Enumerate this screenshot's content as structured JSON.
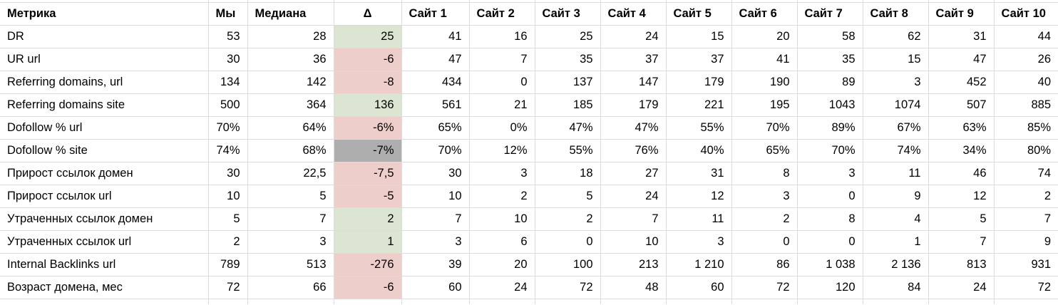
{
  "colors": {
    "delta_positive_bg": "#dbe5d2",
    "delta_negative_bg": "#edcecb",
    "delta_neutral_bg": "#aeaeae",
    "grid_line": "#dcdcdc",
    "text": "#000000",
    "background": "#ffffff"
  },
  "table": {
    "columns": [
      {
        "label": "Метрика",
        "align": "left"
      },
      {
        "label": "Мы",
        "align": "left"
      },
      {
        "label": "Медиана",
        "align": "left"
      },
      {
        "label": "Δ",
        "align": "center"
      },
      {
        "label": "Сайт 1",
        "align": "left"
      },
      {
        "label": "Сайт 2",
        "align": "left"
      },
      {
        "label": "Сайт 3",
        "align": "left"
      },
      {
        "label": "Сайт 4",
        "align": "left"
      },
      {
        "label": "Сайт 5",
        "align": "left"
      },
      {
        "label": "Сайт 6",
        "align": "left"
      },
      {
        "label": "Сайт 7",
        "align": "left"
      },
      {
        "label": "Сайт 8",
        "align": "left"
      },
      {
        "label": "Сайт 9",
        "align": "left"
      },
      {
        "label": "Сайт 10",
        "align": "left"
      }
    ],
    "rows": [
      {
        "metric": "DR",
        "we": "53",
        "median": "28",
        "delta": "25",
        "delta_state": "positive",
        "sites": [
          "41",
          "16",
          "25",
          "24",
          "15",
          "20",
          "58",
          "62",
          "31",
          "44"
        ]
      },
      {
        "metric": "UR url",
        "we": "30",
        "median": "36",
        "delta": "-6",
        "delta_state": "negative",
        "sites": [
          "47",
          "7",
          "35",
          "37",
          "37",
          "41",
          "35",
          "15",
          "47",
          "26"
        ]
      },
      {
        "metric": "Referring domains, url",
        "we": "134",
        "median": "142",
        "delta": "-8",
        "delta_state": "negative",
        "sites": [
          "434",
          "0",
          "137",
          "147",
          "179",
          "190",
          "89",
          "3",
          "452",
          "40"
        ]
      },
      {
        "metric": "Referring domains site",
        "we": "500",
        "median": "364",
        "delta": "136",
        "delta_state": "positive",
        "sites": [
          "561",
          "21",
          "185",
          "179",
          "221",
          "195",
          "1043",
          "1074",
          "507",
          "885"
        ]
      },
      {
        "metric": "Dofollow % url",
        "we": "70%",
        "median": "64%",
        "delta": "-6%",
        "delta_state": "negative",
        "sites": [
          "65%",
          "0%",
          "47%",
          "47%",
          "55%",
          "70%",
          "89%",
          "67%",
          "63%",
          "85%"
        ]
      },
      {
        "metric": "Dofollow % site",
        "we": "74%",
        "median": "68%",
        "delta": "-7%",
        "delta_state": "neutral",
        "sites": [
          "70%",
          "12%",
          "55%",
          "76%",
          "40%",
          "65%",
          "70%",
          "74%",
          "34%",
          "80%"
        ]
      },
      {
        "metric": "Прирост ссылок домен",
        "we": "30",
        "median": "22,5",
        "delta": "-7,5",
        "delta_state": "negative",
        "sites": [
          "30",
          "3",
          "18",
          "27",
          "31",
          "8",
          "3",
          "11",
          "46",
          "74"
        ]
      },
      {
        "metric": "Прирост ссылок url",
        "we": "10",
        "median": "5",
        "delta": "-5",
        "delta_state": "negative",
        "sites": [
          "10",
          "2",
          "5",
          "24",
          "12",
          "3",
          "0",
          "9",
          "12",
          "2"
        ]
      },
      {
        "metric": "Утраченных ссылок домен",
        "we": "5",
        "median": "7",
        "delta": "2",
        "delta_state": "positive",
        "sites": [
          "7",
          "10",
          "2",
          "7",
          "11",
          "2",
          "8",
          "4",
          "5",
          "7"
        ]
      },
      {
        "metric": "Утраченных ссылок url",
        "we": "2",
        "median": "3",
        "delta": "1",
        "delta_state": "positive",
        "sites": [
          "3",
          "6",
          "0",
          "10",
          "3",
          "0",
          "0",
          "1",
          "7",
          "9"
        ]
      },
      {
        "metric": "Internal Backlinks url",
        "we": "789",
        "median": "513",
        "delta": "-276",
        "delta_state": "negative",
        "sites": [
          "39",
          "20",
          "100",
          "213",
          "1 210",
          "86",
          "1 038",
          "2 136",
          "813",
          "931"
        ]
      },
      {
        "metric": "Возраст домена, мес",
        "we": "72",
        "median": "66",
        "delta": "-6",
        "delta_state": "negative",
        "sites": [
          "60",
          "24",
          "72",
          "48",
          "60",
          "72",
          "120",
          "84",
          "24",
          "72"
        ]
      }
    ]
  }
}
